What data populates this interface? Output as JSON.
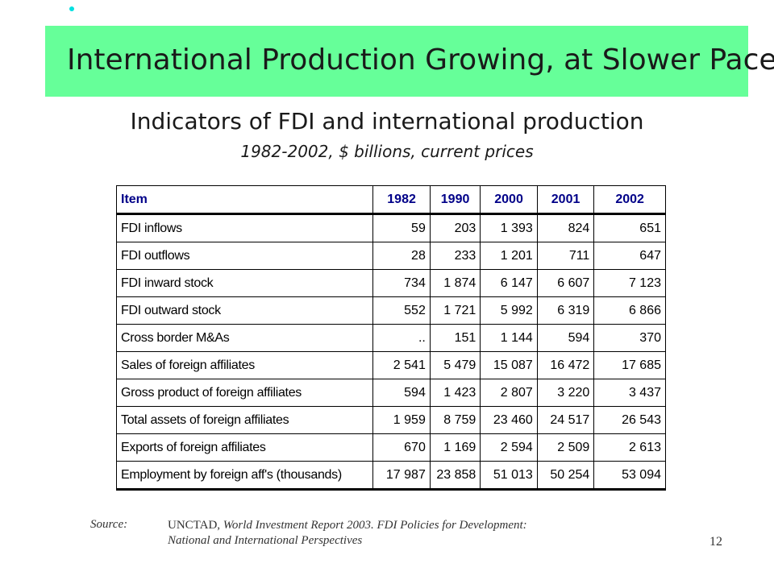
{
  "slide": {
    "title": "International Production Growing, at Slower Pace",
    "subtitle": "Indicators of FDI and international production",
    "subsubtitle": "1982-2002, $ billions, current prices",
    "page_number": "12",
    "bullet_color": "#00e0e0",
    "title_bar_color": "#66ff99"
  },
  "table": {
    "headers": [
      "Item",
      "1982",
      "1990",
      "2000",
      "2001",
      "2002"
    ],
    "header_color": "#000088",
    "rows": [
      {
        "item": "FDI inflows",
        "values": [
          "59",
          "203",
          "1 393",
          "824",
          "651"
        ]
      },
      {
        "item": "FDI outflows",
        "values": [
          "28",
          "233",
          "1 201",
          "711",
          "647"
        ]
      },
      {
        "item": "FDI inward stock",
        "values": [
          "734",
          "1 874",
          "6 147",
          "6 607",
          "7 123"
        ]
      },
      {
        "item": "FDI outward stock",
        "values": [
          "552",
          "1 721",
          "5 992",
          "6 319",
          "6 866"
        ]
      },
      {
        "item": "Cross border M&As",
        "values": [
          "..",
          "151",
          "1 144",
          "594",
          "370"
        ]
      },
      {
        "item": "Sales of foreign affiliates",
        "values": [
          "2 541",
          "5 479",
          "15 087",
          "16 472",
          "17 685"
        ]
      },
      {
        "item": "Gross product of foreign affiliates",
        "values": [
          "594",
          "1 423",
          "2 807",
          "3 220",
          "3 437"
        ]
      },
      {
        "item": "Total assets of foreign affiliates",
        "values": [
          "1 959",
          "8 759",
          "23 460",
          "24 517",
          "26 543"
        ]
      },
      {
        "item": "Exports of foreign affiliates",
        "values": [
          "670",
          "1 169",
          "2 594",
          "2 509",
          "2 613"
        ]
      },
      {
        "item": "Employment by foreign aff's (thousands)",
        "values": [
          "17 987",
          "23 858",
          "51 013",
          "50 254",
          "53 094"
        ]
      }
    ]
  },
  "source": {
    "label": "Source:",
    "org": "UNCTAD,",
    "report": "World Investment Report 2003.  FDI Policies for Development:",
    "report_line2": "National and International Perspectives"
  }
}
